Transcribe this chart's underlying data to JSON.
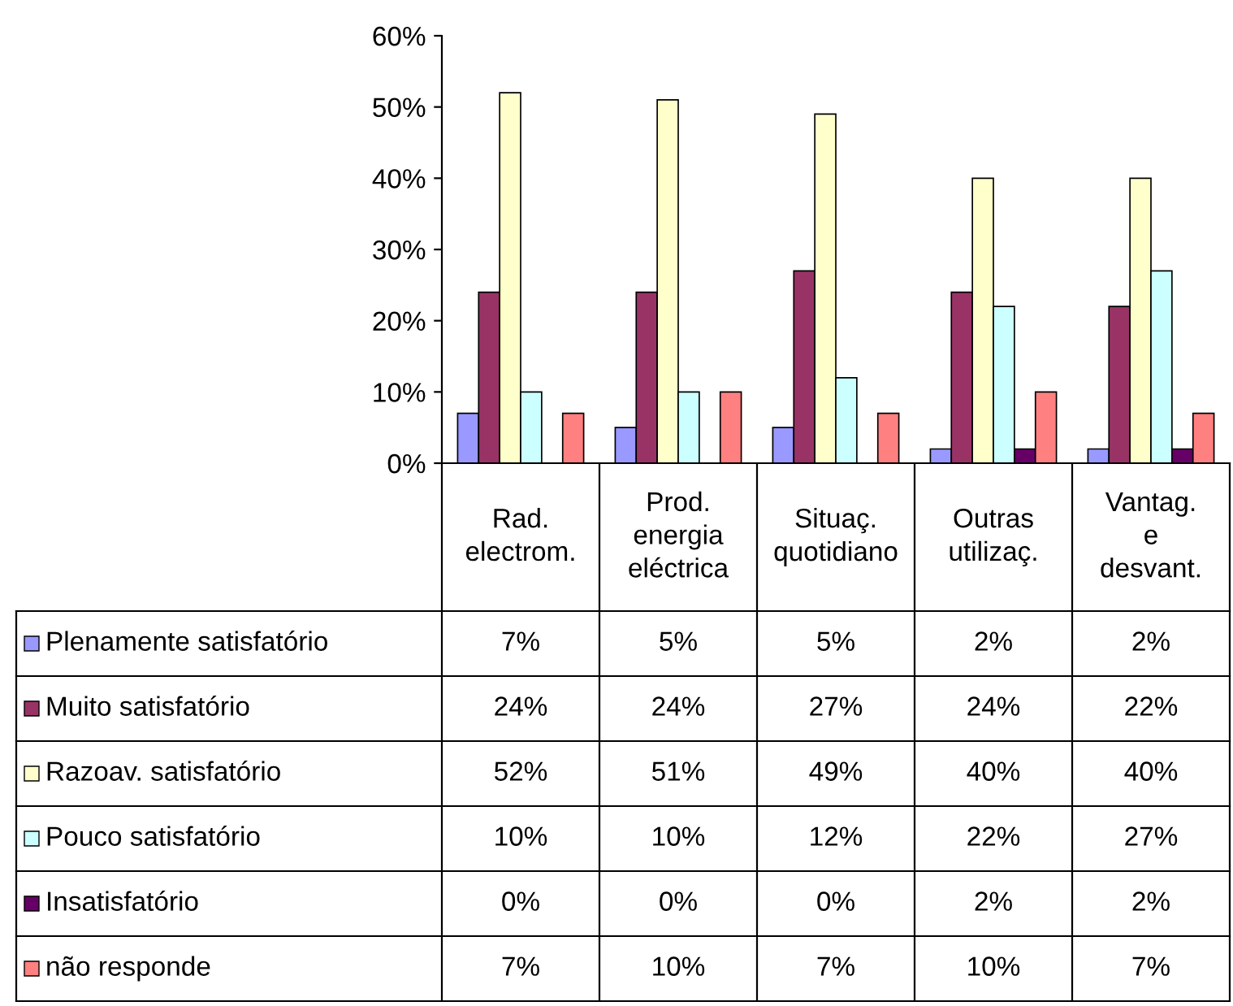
{
  "chart_data": {
    "type": "bar",
    "categories": [
      "Rad. electrom.",
      "Prod. energia eléctrica",
      "Situaç. quotidiano",
      "Outras utilizaç.",
      "Vantag. e desvant."
    ],
    "series": [
      {
        "name": "Plenamente satisfatório",
        "color": "#9999ff",
        "values": [
          7,
          5,
          5,
          2,
          2
        ],
        "value_labels": [
          "7%",
          "5%",
          "5%",
          "2%",
          "2%"
        ]
      },
      {
        "name": "Muito satisfatório",
        "color": "#993366",
        "values": [
          24,
          24,
          27,
          24,
          22
        ],
        "value_labels": [
          "24%",
          "24%",
          "27%",
          "24%",
          "22%"
        ]
      },
      {
        "name": "Razoav. satisfatório",
        "color": "#ffffcc",
        "values": [
          52,
          51,
          49,
          40,
          40
        ],
        "value_labels": [
          "52%",
          "51%",
          "49%",
          "40%",
          "40%"
        ]
      },
      {
        "name": "Pouco satisfatório",
        "color": "#ccffff",
        "values": [
          10,
          10,
          12,
          22,
          27
        ],
        "value_labels": [
          "10%",
          "10%",
          "12%",
          "22%",
          "27%"
        ]
      },
      {
        "name": "Insatisfatório",
        "color": "#660066",
        "values": [
          0,
          0,
          0,
          2,
          2
        ],
        "value_labels": [
          "0%",
          "0%",
          "0%",
          "2%",
          "2%"
        ]
      },
      {
        "name": "não responde",
        "color": "#ff8080",
        "values": [
          7,
          10,
          7,
          10,
          7
        ],
        "value_labels": [
          "7%",
          "10%",
          "7%",
          "10%",
          "7%"
        ]
      }
    ],
    "ylim": [
      0,
      60
    ],
    "yticks": [
      {
        "value": 0,
        "label": "0%"
      },
      {
        "value": 10,
        "label": "10%"
      },
      {
        "value": 20,
        "label": "20%"
      },
      {
        "value": 30,
        "label": "30%"
      },
      {
        "value": 40,
        "label": "40%"
      },
      {
        "value": 50,
        "label": "50%"
      },
      {
        "value": 60,
        "label": "60%"
      }
    ],
    "legend": "bottom left"
  }
}
